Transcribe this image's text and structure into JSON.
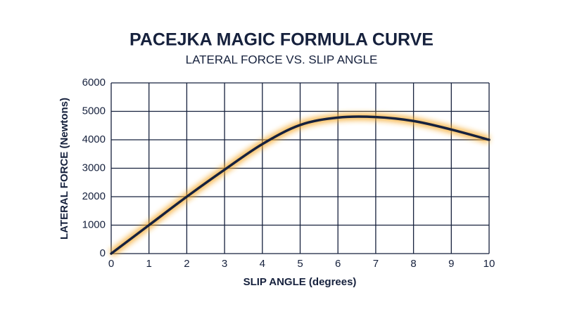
{
  "chart_data": {
    "type": "line",
    "title": "PACEJKA MAGIC FORMULA CURVE",
    "subtitle": "LATERAL FORCE VS. SLIP ANGLE",
    "x_label": "SLIP ANGLE (degrees)",
    "y_label": "LATERAL FORCE (Newtons)",
    "x": [
      0,
      1,
      2,
      3,
      4,
      5,
      6,
      7,
      8,
      9,
      10
    ],
    "series": [
      {
        "color": "#16213d",
        "glow": "#f5a623",
        "values": [
          0,
          1000,
          2000,
          2950,
          3850,
          4520,
          4780,
          4800,
          4660,
          4360,
          4000
        ]
      }
    ],
    "xlim": [
      0,
      10
    ],
    "xticks": [
      0,
      1,
      2,
      3,
      4,
      5,
      6,
      7,
      8,
      9,
      10
    ],
    "ylim": [
      0,
      6000
    ],
    "yticks": [
      0,
      1000,
      2000,
      3000,
      4000,
      5000,
      6000
    ],
    "grid": true
  }
}
